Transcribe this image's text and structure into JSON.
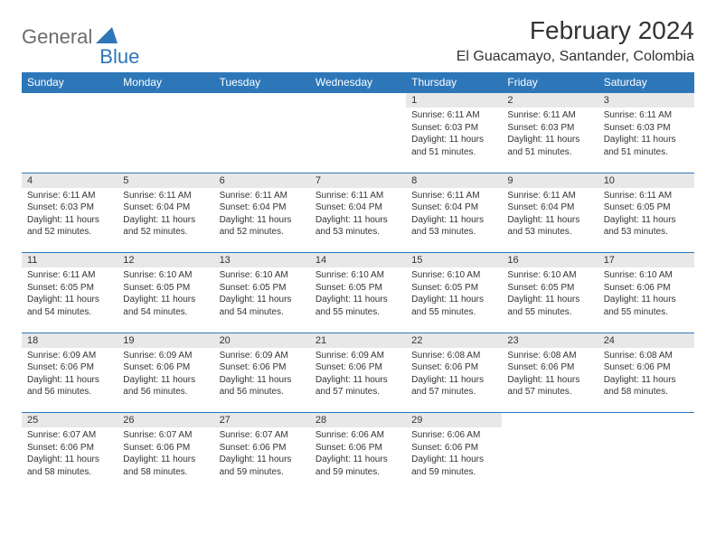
{
  "logo": {
    "text1": "General",
    "text2": "Blue",
    "text1_color": "#6c6c6c",
    "text2_color": "#2d77b9"
  },
  "title": "February 2024",
  "location": "El Guacamayo, Santander, Colombia",
  "colors": {
    "header_bg": "#2d77b9",
    "header_text": "#ffffff",
    "daynum_bg": "#e8e8e8",
    "page_bg": "#ffffff",
    "text": "#333333",
    "row_divider": "#2d77b9"
  },
  "typography": {
    "title_fontsize": 28,
    "location_fontsize": 16,
    "header_fontsize": 12,
    "daynum_fontsize": 11,
    "detail_fontsize": 10
  },
  "weekdays": [
    "Sunday",
    "Monday",
    "Tuesday",
    "Wednesday",
    "Thursday",
    "Friday",
    "Saturday"
  ],
  "weeks": [
    [
      null,
      null,
      null,
      null,
      {
        "n": "1",
        "sunrise": "6:11 AM",
        "sunset": "6:03 PM",
        "daylight": "11 hours and 51 minutes."
      },
      {
        "n": "2",
        "sunrise": "6:11 AM",
        "sunset": "6:03 PM",
        "daylight": "11 hours and 51 minutes."
      },
      {
        "n": "3",
        "sunrise": "6:11 AM",
        "sunset": "6:03 PM",
        "daylight": "11 hours and 51 minutes."
      }
    ],
    [
      {
        "n": "4",
        "sunrise": "6:11 AM",
        "sunset": "6:03 PM",
        "daylight": "11 hours and 52 minutes."
      },
      {
        "n": "5",
        "sunrise": "6:11 AM",
        "sunset": "6:04 PM",
        "daylight": "11 hours and 52 minutes."
      },
      {
        "n": "6",
        "sunrise": "6:11 AM",
        "sunset": "6:04 PM",
        "daylight": "11 hours and 52 minutes."
      },
      {
        "n": "7",
        "sunrise": "6:11 AM",
        "sunset": "6:04 PM",
        "daylight": "11 hours and 53 minutes."
      },
      {
        "n": "8",
        "sunrise": "6:11 AM",
        "sunset": "6:04 PM",
        "daylight": "11 hours and 53 minutes."
      },
      {
        "n": "9",
        "sunrise": "6:11 AM",
        "sunset": "6:04 PM",
        "daylight": "11 hours and 53 minutes."
      },
      {
        "n": "10",
        "sunrise": "6:11 AM",
        "sunset": "6:05 PM",
        "daylight": "11 hours and 53 minutes."
      }
    ],
    [
      {
        "n": "11",
        "sunrise": "6:11 AM",
        "sunset": "6:05 PM",
        "daylight": "11 hours and 54 minutes."
      },
      {
        "n": "12",
        "sunrise": "6:10 AM",
        "sunset": "6:05 PM",
        "daylight": "11 hours and 54 minutes."
      },
      {
        "n": "13",
        "sunrise": "6:10 AM",
        "sunset": "6:05 PM",
        "daylight": "11 hours and 54 minutes."
      },
      {
        "n": "14",
        "sunrise": "6:10 AM",
        "sunset": "6:05 PM",
        "daylight": "11 hours and 55 minutes."
      },
      {
        "n": "15",
        "sunrise": "6:10 AM",
        "sunset": "6:05 PM",
        "daylight": "11 hours and 55 minutes."
      },
      {
        "n": "16",
        "sunrise": "6:10 AM",
        "sunset": "6:05 PM",
        "daylight": "11 hours and 55 minutes."
      },
      {
        "n": "17",
        "sunrise": "6:10 AM",
        "sunset": "6:06 PM",
        "daylight": "11 hours and 55 minutes."
      }
    ],
    [
      {
        "n": "18",
        "sunrise": "6:09 AM",
        "sunset": "6:06 PM",
        "daylight": "11 hours and 56 minutes."
      },
      {
        "n": "19",
        "sunrise": "6:09 AM",
        "sunset": "6:06 PM",
        "daylight": "11 hours and 56 minutes."
      },
      {
        "n": "20",
        "sunrise": "6:09 AM",
        "sunset": "6:06 PM",
        "daylight": "11 hours and 56 minutes."
      },
      {
        "n": "21",
        "sunrise": "6:09 AM",
        "sunset": "6:06 PM",
        "daylight": "11 hours and 57 minutes."
      },
      {
        "n": "22",
        "sunrise": "6:08 AM",
        "sunset": "6:06 PM",
        "daylight": "11 hours and 57 minutes."
      },
      {
        "n": "23",
        "sunrise": "6:08 AM",
        "sunset": "6:06 PM",
        "daylight": "11 hours and 57 minutes."
      },
      {
        "n": "24",
        "sunrise": "6:08 AM",
        "sunset": "6:06 PM",
        "daylight": "11 hours and 58 minutes."
      }
    ],
    [
      {
        "n": "25",
        "sunrise": "6:07 AM",
        "sunset": "6:06 PM",
        "daylight": "11 hours and 58 minutes."
      },
      {
        "n": "26",
        "sunrise": "6:07 AM",
        "sunset": "6:06 PM",
        "daylight": "11 hours and 58 minutes."
      },
      {
        "n": "27",
        "sunrise": "6:07 AM",
        "sunset": "6:06 PM",
        "daylight": "11 hours and 59 minutes."
      },
      {
        "n": "28",
        "sunrise": "6:06 AM",
        "sunset": "6:06 PM",
        "daylight": "11 hours and 59 minutes."
      },
      {
        "n": "29",
        "sunrise": "6:06 AM",
        "sunset": "6:06 PM",
        "daylight": "11 hours and 59 minutes."
      },
      null,
      null
    ]
  ],
  "labels": {
    "sunrise": "Sunrise: ",
    "sunset": "Sunset: ",
    "daylight": "Daylight: "
  }
}
